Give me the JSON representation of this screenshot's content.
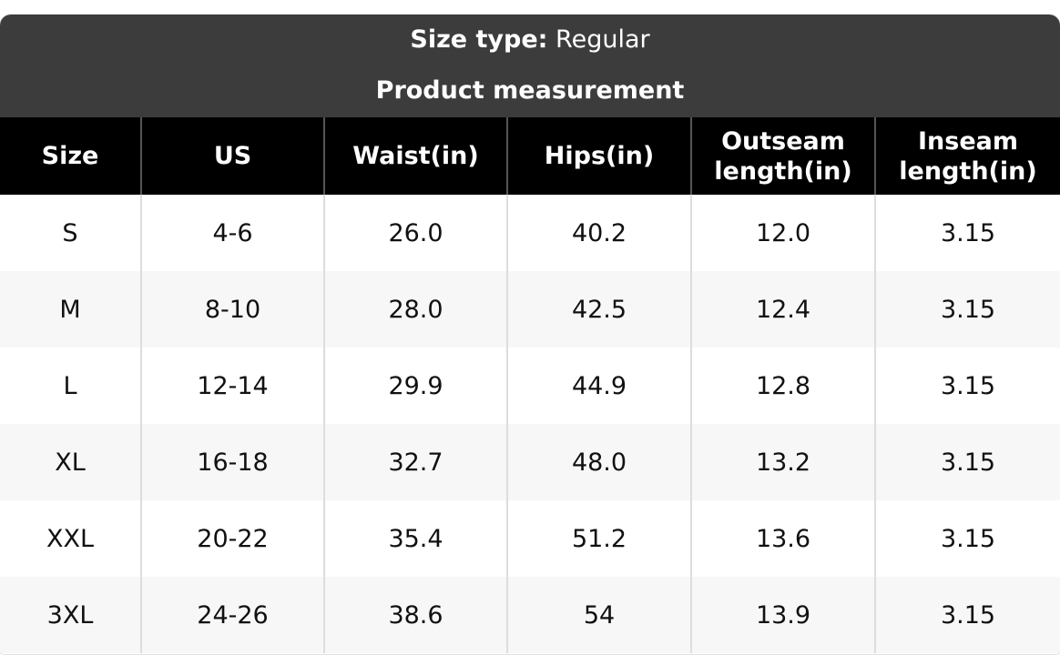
{
  "header": {
    "size_type_label": "Size type:",
    "size_type_value": "Regular",
    "title": "Product measurement"
  },
  "table": {
    "columns": [
      "Size",
      "US",
      "Waist(in)",
      "Hips(in)",
      "Outseam length(in)",
      "Inseam length(in)"
    ],
    "rows": [
      [
        "S",
        "4-6",
        "26.0",
        "40.2",
        "12.0",
        "3.15"
      ],
      [
        "M",
        "8-10",
        "28.0",
        "42.5",
        "12.4",
        "3.15"
      ],
      [
        "L",
        "12-14",
        "29.9",
        "44.9",
        "12.8",
        "3.15"
      ],
      [
        "XL",
        "16-18",
        "32.7",
        "48.0",
        "13.2",
        "3.15"
      ],
      [
        "XXL",
        "20-22",
        "35.4",
        "51.2",
        "13.6",
        "3.15"
      ],
      [
        "3XL",
        "24-26",
        "38.6",
        "54",
        "13.9",
        "3.15"
      ]
    ]
  }
}
